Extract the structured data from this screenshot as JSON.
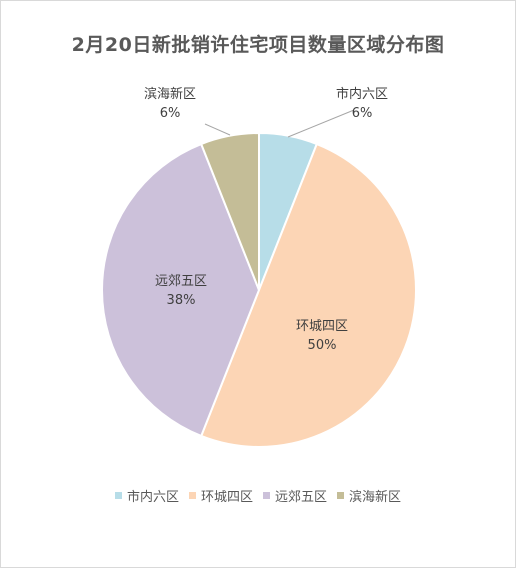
{
  "chart_data": {
    "type": "pie",
    "title": "2月20日新批销许住宅项目数量区域分布图",
    "slices": [
      {
        "name": "市内六区",
        "value": 6,
        "label": "6%",
        "color": "#b7dde8"
      },
      {
        "name": "环城四区",
        "value": 50,
        "label": "50%",
        "color": "#fcd5b5"
      },
      {
        "name": "远郊五区",
        "value": 38,
        "label": "38%",
        "color": "#ccc1da"
      },
      {
        "name": "滨海新区",
        "value": 6,
        "label": "6%",
        "color": "#c4bd97"
      }
    ],
    "start_angle_deg": 0,
    "direction": "clockwise",
    "legend_position": "bottom"
  }
}
